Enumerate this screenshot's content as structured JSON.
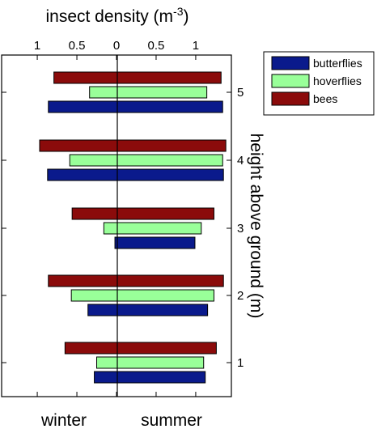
{
  "chart_data": {
    "type": "bar",
    "orientation": "horizontal",
    "title_main": "insect density (m",
    "title_exp": "-3",
    "title_close": ")",
    "ylabel": "height above ground (m)",
    "categories": [
      "1",
      "2",
      "3",
      "4",
      "5"
    ],
    "x_ticks": [
      {
        "value": -1,
        "label": "1"
      },
      {
        "value": -0.5,
        "label": "0.5"
      },
      {
        "value": 0,
        "label": "0"
      },
      {
        "value": 0.5,
        "label": "0.5"
      },
      {
        "value": 1,
        "label": "1"
      }
    ],
    "xlim": [
      -1.45,
      1.45
    ],
    "winter_label": "winter",
    "summer_label": "summer",
    "series": [
      {
        "name": "butterflies",
        "color": "#0a1a8c",
        "winter": [
          0.28,
          0.36,
          0.02,
          0.87,
          0.86
        ],
        "summer": [
          1.12,
          1.15,
          0.99,
          1.35,
          1.34
        ]
      },
      {
        "name": "hoverflies",
        "color": "#99ff99",
        "winter": [
          0.25,
          0.57,
          0.16,
          0.59,
          0.34
        ],
        "summer": [
          1.1,
          1.23,
          1.07,
          1.34,
          1.14
        ]
      },
      {
        "name": "bees",
        "color": "#8b0b0b",
        "winter": [
          0.65,
          0.86,
          0.56,
          0.97,
          0.79
        ],
        "summer": [
          1.26,
          1.35,
          1.23,
          1.38,
          1.32
        ]
      }
    ],
    "legend_position": "top-right",
    "grid": false
  }
}
